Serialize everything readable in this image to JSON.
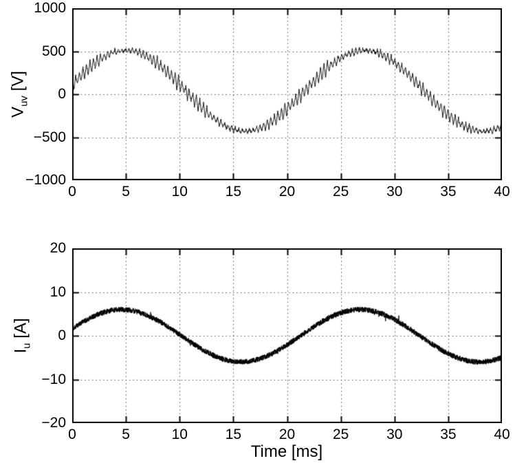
{
  "figure": {
    "background": "#ffffff",
    "foreground": "#000000",
    "grid_color": "#3a3a3a",
    "grid_style": "dotted"
  },
  "chart_data": [
    {
      "id": "voltage",
      "type": "line",
      "title": "",
      "xlabel": "",
      "ylabel": "V_uv [V]",
      "ylabel_parts": {
        "symbol": "V",
        "subscript": "uv",
        "unit": " [V]"
      },
      "xlim": [
        0,
        40
      ],
      "ylim": [
        -1000,
        1000
      ],
      "x_ticks": [
        0,
        5,
        10,
        15,
        20,
        25,
        30,
        35,
        40
      ],
      "y_ticks": [
        -1000,
        -500,
        0,
        500,
        1000
      ],
      "grid": true,
      "legend": false,
      "series": [
        {
          "name": "V_uv",
          "description": "PWM inverter line-to-line voltage: sine fundamental with high-frequency switching ripple",
          "fundamental": {
            "amplitude": 470,
            "offset": 40,
            "period_ms": 22.2,
            "peak_time_ms": 5.0
          },
          "ripple": {
            "kind": "pwm_triangle",
            "switching_period_ms": 0.33,
            "base": 18,
            "slope": 62,
            "jitter": 14
          },
          "x_ms": [
            0,
            2,
            4,
            6,
            8,
            10,
            12,
            14,
            16,
            18,
            20,
            22,
            24,
            26,
            28,
            30,
            32,
            34,
            36,
            38,
            40
          ],
          "y": [
            113,
            351,
            491,
            491,
            351,
            113,
            -146,
            -349,
            -430,
            -364,
            -171,
            86,
            330,
            483,
            498,
            370,
            139,
            -122,
            -335,
            -428,
            -377
          ]
        }
      ]
    },
    {
      "id": "current",
      "type": "line",
      "title": "",
      "xlabel": "Time [ms]",
      "ylabel": "I_u [A]",
      "ylabel_parts": {
        "symbol": "I",
        "subscript": "u",
        "unit": " [A]"
      },
      "xlim": [
        0,
        40
      ],
      "ylim": [
        -20,
        20
      ],
      "x_ticks": [
        0,
        5,
        10,
        15,
        20,
        25,
        30,
        35,
        40
      ],
      "y_ticks": [
        -20,
        -10,
        0,
        10,
        20
      ],
      "grid": true,
      "legend": false,
      "series": [
        {
          "name": "I_u",
          "description": "Motor phase current: sine fundamental with narrow switching-noise band",
          "fundamental": {
            "amplitude": 6.0,
            "offset": 0,
            "period_ms": 22.2,
            "peak_time_ms": 4.6
          },
          "noise": {
            "kind": "uniform_band",
            "band": 0.62,
            "spike": 1.1
          },
          "x_ms": [
            0,
            2,
            4,
            6,
            8,
            10,
            12,
            14,
            16,
            18,
            20,
            22,
            24,
            26,
            28,
            30,
            32,
            34,
            36,
            38,
            40
          ],
          "y": [
            1.6,
            4.45,
            5.91,
            5.54,
            3.43,
            0.25,
            -3.0,
            -5.32,
            -5.98,
            -4.77,
            -2.08,
            1.27,
            4.21,
            5.85,
            5.66,
            3.7,
            0.59,
            -2.7,
            -5.14,
            -6.0,
            -4.97
          ]
        }
      ]
    }
  ]
}
